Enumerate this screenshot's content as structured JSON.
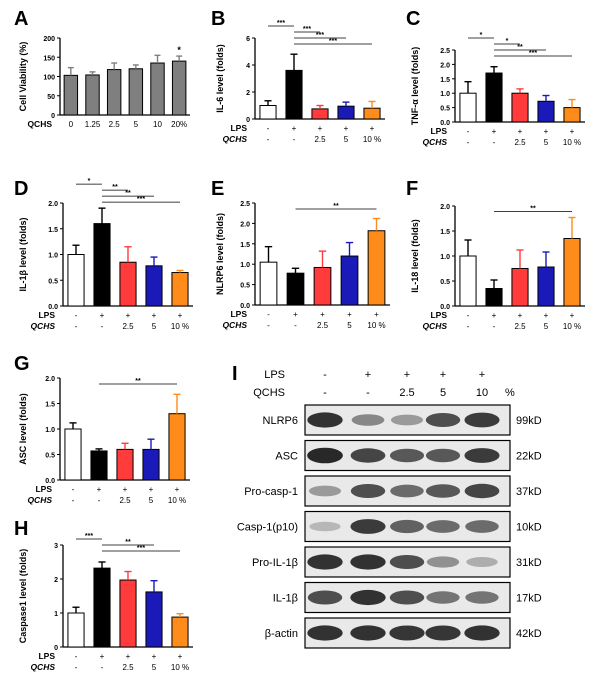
{
  "colors": {
    "grey": "#7f7f7f",
    "white": "#ffffff",
    "black": "#000000",
    "red": "#ff3b3b",
    "blue": "#1a1ab8",
    "orange": "#ff8c1a"
  },
  "chart_data": [
    {
      "panel": "A",
      "type": "bar",
      "ylabel": "Cell Viability (%)",
      "ylim": [
        0,
        200
      ],
      "yticks": [
        "0",
        "50",
        "100",
        "150",
        "200"
      ],
      "categories": [
        "0",
        "1.25",
        "2.5",
        "5",
        "10",
        "20%"
      ],
      "values": [
        103,
        104,
        118,
        120,
        135,
        140
      ],
      "errors": [
        20,
        8,
        17,
        10,
        20,
        13
      ],
      "bar_colors": [
        "grey",
        "grey",
        "grey",
        "grey",
        "grey",
        "grey"
      ],
      "xlabel_rows": [
        {
          "label": "QCHS",
          "italic": false,
          "values": [
            "0",
            "1.25",
            "2.5",
            "5",
            "10",
            "20%"
          ]
        }
      ],
      "sig": [
        {
          "bar": 5,
          "text": "*"
        }
      ],
      "brackets": []
    },
    {
      "panel": "B",
      "type": "bar",
      "ylabel": "IL-6 level (folds)",
      "ylim": [
        0,
        6
      ],
      "yticks": [
        "0",
        "2",
        "4",
        "6"
      ],
      "categories": [
        "-/-",
        "+/-",
        "+/2.5",
        "+/5",
        "+/10 %"
      ],
      "values": [
        1.0,
        3.6,
        0.75,
        0.95,
        0.8
      ],
      "errors": [
        0.35,
        1.2,
        0.25,
        0.3,
        0.5
      ],
      "bar_colors": [
        "white",
        "black",
        "red",
        "blue",
        "orange"
      ],
      "xlabel_rows": [
        {
          "label": "LPS",
          "italic": false,
          "values": [
            "-",
            "+",
            "+",
            "+",
            "+"
          ]
        },
        {
          "label": "QCHS",
          "italic": true,
          "values": [
            "-",
            "-",
            "2.5",
            "5",
            "10 %"
          ]
        }
      ],
      "sig": [],
      "brackets": [
        {
          "from": 0,
          "to": 1,
          "text": "***"
        },
        {
          "from": 1,
          "to": 2,
          "text": "***"
        },
        {
          "from": 1,
          "to": 3,
          "text": "***"
        },
        {
          "from": 1,
          "to": 4,
          "text": "***"
        }
      ]
    },
    {
      "panel": "C",
      "type": "bar",
      "ylabel": "TNF-α level (folds)",
      "ylim": [
        0,
        2.5
      ],
      "yticks": [
        "0.0",
        "0.5",
        "1.0",
        "1.5",
        "2.0",
        "2.5"
      ],
      "categories": [
        "-/-",
        "+/-",
        "+/2.5",
        "+/5",
        "+/10 %"
      ],
      "values": [
        1.0,
        1.7,
        1.0,
        0.72,
        0.5
      ],
      "errors": [
        0.4,
        0.22,
        0.15,
        0.2,
        0.28
      ],
      "bar_colors": [
        "white",
        "black",
        "red",
        "blue",
        "orange"
      ],
      "xlabel_rows": [
        {
          "label": "LPS",
          "italic": false,
          "values": [
            "-",
            "+",
            "+",
            "+",
            "+"
          ]
        },
        {
          "label": "QCHS",
          "italic": true,
          "values": [
            "-",
            "-",
            "2.5",
            "5",
            "10 %"
          ]
        }
      ],
      "sig": [],
      "brackets": [
        {
          "from": 0,
          "to": 1,
          "text": "*"
        },
        {
          "from": 1,
          "to": 2,
          "text": "*"
        },
        {
          "from": 1,
          "to": 3,
          "text": "**"
        },
        {
          "from": 1,
          "to": 4,
          "text": "***"
        }
      ]
    },
    {
      "panel": "D",
      "type": "bar",
      "ylabel": "IL-1β level (folds)",
      "ylim": [
        0,
        2.0
      ],
      "yticks": [
        "0.0",
        "0.5",
        "1.0",
        "1.5",
        "2.0"
      ],
      "categories": [
        "-/-",
        "+/-",
        "+/2.5",
        "+/5",
        "+/10 %"
      ],
      "values": [
        1.0,
        1.6,
        0.85,
        0.78,
        0.65
      ],
      "errors": [
        0.18,
        0.3,
        0.3,
        0.17,
        0.04
      ],
      "bar_colors": [
        "white",
        "black",
        "red",
        "blue",
        "orange"
      ],
      "xlabel_rows": [
        {
          "label": "LPS",
          "italic": false,
          "values": [
            "-",
            "+",
            "+",
            "+",
            "+"
          ]
        },
        {
          "label": "QCHS",
          "italic": true,
          "values": [
            "-",
            "-",
            "2.5",
            "5",
            "10 %"
          ]
        }
      ],
      "sig": [],
      "brackets": [
        {
          "from": 0,
          "to": 1,
          "text": "*"
        },
        {
          "from": 1,
          "to": 2,
          "text": "**"
        },
        {
          "from": 1,
          "to": 3,
          "text": "**"
        },
        {
          "from": 1,
          "to": 4,
          "text": "***"
        }
      ]
    },
    {
      "panel": "E",
      "type": "bar",
      "ylabel": "NLRP6 level (folds)",
      "ylim": [
        0,
        2.5
      ],
      "yticks": [
        "0.0",
        "0.5",
        "1.0",
        "1.5",
        "2.0",
        "2.5"
      ],
      "categories": [
        "-/-",
        "+/-",
        "+/2.5",
        "+/5",
        "+/10 %"
      ],
      "values": [
        1.05,
        0.78,
        0.92,
        1.2,
        1.82
      ],
      "errors": [
        0.38,
        0.12,
        0.4,
        0.33,
        0.3
      ],
      "bar_colors": [
        "white",
        "black",
        "red",
        "blue",
        "orange"
      ],
      "xlabel_rows": [
        {
          "label": "LPS",
          "italic": false,
          "values": [
            "-",
            "+",
            "+",
            "+",
            "+"
          ]
        },
        {
          "label": "QCHS",
          "italic": true,
          "values": [
            "-",
            "-",
            "2.5",
            "5",
            "10 %"
          ]
        }
      ],
      "sig": [],
      "brackets": [
        {
          "from": 1,
          "to": 4,
          "text": "**"
        }
      ]
    },
    {
      "panel": "F",
      "type": "bar",
      "ylabel": "IL-18 level (folds)",
      "ylim": [
        0,
        2.0
      ],
      "yticks": [
        "0.0",
        "0.5",
        "1.0",
        "1.5",
        "2.0"
      ],
      "categories": [
        "-/-",
        "+/-",
        "+/2.5",
        "+/5",
        "+/10 %"
      ],
      "values": [
        1.0,
        0.35,
        0.75,
        0.78,
        1.35
      ],
      "errors": [
        0.32,
        0.17,
        0.37,
        0.3,
        0.42
      ],
      "bar_colors": [
        "white",
        "black",
        "red",
        "blue",
        "orange"
      ],
      "xlabel_rows": [
        {
          "label": "LPS",
          "italic": false,
          "values": [
            "-",
            "+",
            "+",
            "+",
            "+"
          ]
        },
        {
          "label": "QCHS",
          "italic": true,
          "values": [
            "-",
            "-",
            "2.5",
            "5",
            "10 %"
          ]
        }
      ],
      "sig": [],
      "brackets": [
        {
          "from": 1,
          "to": 4,
          "text": "**"
        }
      ]
    },
    {
      "panel": "G",
      "type": "bar",
      "ylabel": "ASC level (folds)",
      "ylim": [
        0,
        2.0
      ],
      "yticks": [
        "0.0",
        "0.5",
        "1.0",
        "1.5",
        "2.0"
      ],
      "categories": [
        "-/-",
        "+/-",
        "+/2.5",
        "+/5",
        "+/10 %"
      ],
      "values": [
        1.0,
        0.57,
        0.6,
        0.6,
        1.3
      ],
      "errors": [
        0.12,
        0.04,
        0.12,
        0.2,
        0.38
      ],
      "bar_colors": [
        "white",
        "black",
        "red",
        "blue",
        "orange"
      ],
      "xlabel_rows": [
        {
          "label": "LPS",
          "italic": false,
          "values": [
            "-",
            "+",
            "+",
            "+",
            "+"
          ]
        },
        {
          "label": "QCHS",
          "italic": true,
          "values": [
            "-",
            "-",
            "2.5",
            "5",
            "10 %"
          ]
        }
      ],
      "sig": [],
      "brackets": [
        {
          "from": 1,
          "to": 4,
          "text": "**"
        }
      ]
    },
    {
      "panel": "H",
      "type": "bar",
      "ylabel": "Caspase1 level (folds)",
      "ylim": [
        0,
        3
      ],
      "yticks": [
        "0",
        "1",
        "2",
        "3"
      ],
      "categories": [
        "-/-",
        "+/-",
        "+/2.5",
        "+/5",
        "+/10 %"
      ],
      "values": [
        1.0,
        2.32,
        1.97,
        1.62,
        0.88
      ],
      "errors": [
        0.17,
        0.18,
        0.25,
        0.33,
        0.1
      ],
      "bar_colors": [
        "white",
        "black",
        "red",
        "blue",
        "orange"
      ],
      "xlabel_rows": [
        {
          "label": "LPS",
          "italic": false,
          "values": [
            "-",
            "+",
            "+",
            "+",
            "+"
          ]
        },
        {
          "label": "QCHS",
          "italic": true,
          "values": [
            "-",
            "-",
            "2.5",
            "5",
            "10 %"
          ]
        }
      ],
      "sig": [],
      "brackets": [
        {
          "from": 0,
          "to": 1,
          "text": "***"
        },
        {
          "from": 1,
          "to": 3,
          "text": "**"
        },
        {
          "from": 1,
          "to": 4,
          "text": "***"
        }
      ]
    }
  ],
  "western": {
    "panel": "I",
    "header_rows": [
      {
        "label": "LPS",
        "values": [
          "-",
          "+",
          "+",
          "+",
          "+"
        ]
      },
      {
        "label": "QCHS",
        "values": [
          "-",
          "-",
          "2.5",
          "5",
          "10"
        ]
      }
    ],
    "unit_suffix": "%",
    "blots": [
      {
        "protein": "NLRP6",
        "size": "99kD",
        "intensity": [
          0.9,
          0.45,
          0.35,
          0.75,
          0.85
        ]
      },
      {
        "protein": "ASC",
        "size": "22kD",
        "intensity": [
          0.95,
          0.8,
          0.7,
          0.7,
          0.85
        ]
      },
      {
        "protein": "Pro-casp-1",
        "size": "37kD",
        "intensity": [
          0.35,
          0.75,
          0.6,
          0.7,
          0.8
        ]
      },
      {
        "protein": "Casp-1(p10)",
        "size": "10kD",
        "intensity": [
          0.2,
          0.85,
          0.65,
          0.6,
          0.6
        ]
      },
      {
        "protein": "Pro-IL-1β",
        "size": "31kD",
        "intensity": [
          0.9,
          0.9,
          0.75,
          0.4,
          0.25
        ]
      },
      {
        "protein": "IL-1β",
        "size": "17kD",
        "intensity": [
          0.75,
          0.9,
          0.75,
          0.55,
          0.55
        ]
      },
      {
        "protein": "β-actin",
        "size": "42kD",
        "intensity": [
          0.9,
          0.9,
          0.88,
          0.88,
          0.9
        ]
      }
    ]
  }
}
